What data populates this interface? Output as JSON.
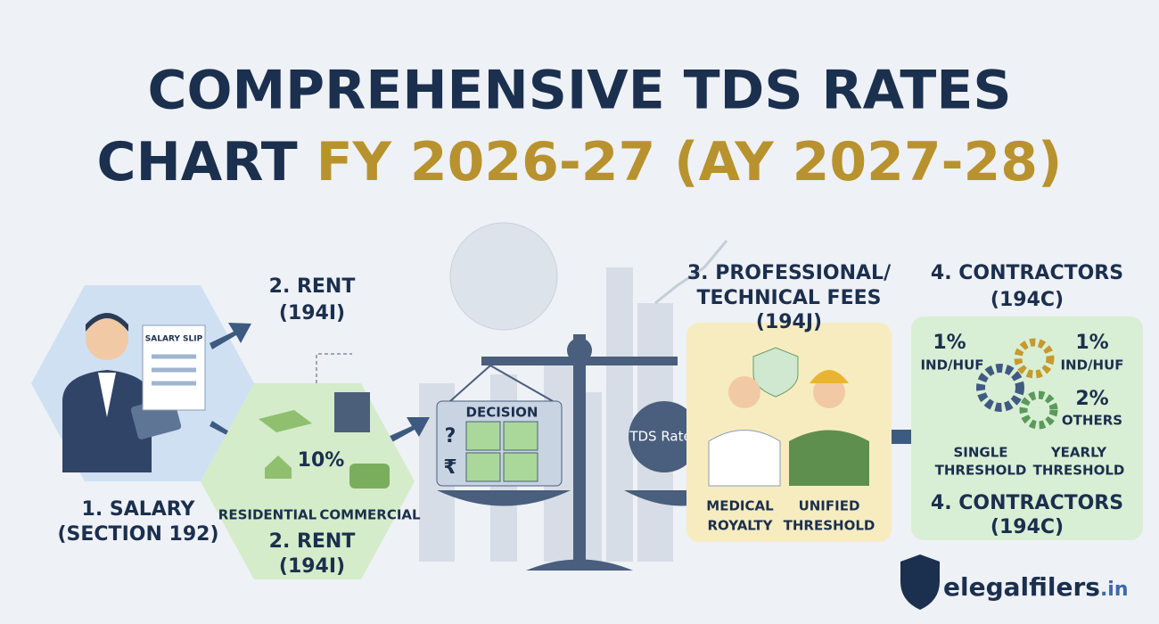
{
  "header": {
    "title_line1": "COMPREHENSIVE TDS RATES",
    "title_line2_start": "CHART",
    "title_line2_highlight": "FY 2026-27 (AY 2027-28)"
  },
  "salary": {
    "slip_label": "SALARY SLIP",
    "title": "1. SALARY",
    "section": "(SECTION 192)"
  },
  "rent_top": {
    "title": "2. RENT",
    "section": "(194I)"
  },
  "rent": {
    "rate": "10%",
    "residential": "RESIDENTIAL",
    "commercial": "COMMERCIAL",
    "title": "2. RENT",
    "section": "(194I)"
  },
  "decision": {
    "label": "DECISION",
    "question": "?",
    "rupee": "₹",
    "bubble": "TDS Rate?"
  },
  "professional": {
    "title_line1": "3. PROFESSIONAL/",
    "title_line2": "TECHNICAL FEES",
    "section": "(194J)",
    "left_line1": "MEDICAL",
    "left_line2": "ROYALTY",
    "right_line1": "UNIFIED",
    "right_line2": "THRESHOLD"
  },
  "contractors": {
    "title": "4. CONTRACTORS",
    "section": "(194C)",
    "rates": [
      {
        "rate": "1%",
        "who": "IND/HUF"
      },
      {
        "rate": "1%",
        "who": "IND/HUF"
      },
      {
        "rate": "2%",
        "who": "OTHERS"
      }
    ],
    "single_line1": "SINGLE",
    "single_line2": "THRESHOLD",
    "yearly_line1": "YEARLY",
    "yearly_line2": "THRESHOLD",
    "footer_title": "4. CONTRACTORS",
    "footer_section": "(194C)"
  },
  "logo": {
    "name": "elegalfilers",
    "tld": ".in"
  }
}
